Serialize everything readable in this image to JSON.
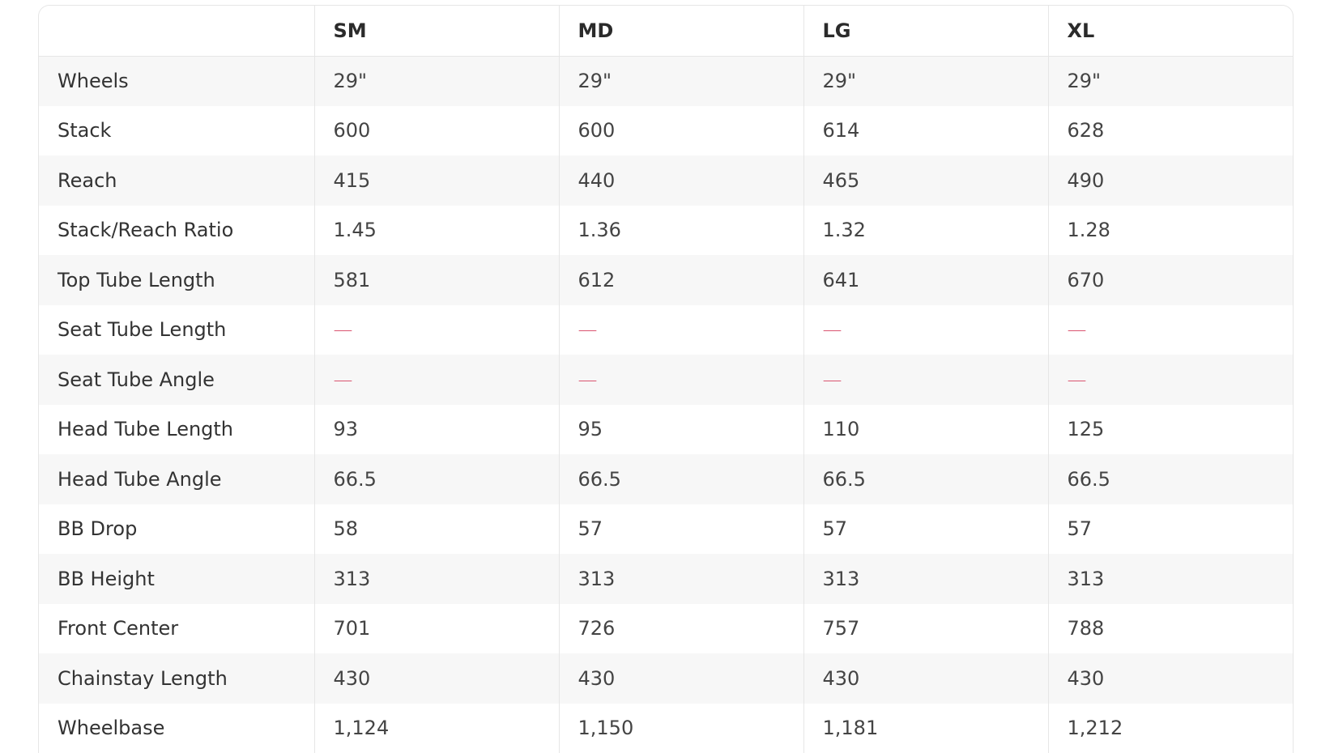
{
  "table": {
    "columns": [
      "SM",
      "MD",
      "LG",
      "XL"
    ],
    "rows": [
      {
        "label": "Wheels",
        "values": [
          "29\"",
          "29\"",
          "29\"",
          "29\""
        ]
      },
      {
        "label": "Stack",
        "values": [
          "600",
          "600",
          "614",
          "628"
        ]
      },
      {
        "label": "Reach",
        "values": [
          "415",
          "440",
          "465",
          "490"
        ]
      },
      {
        "label": "Stack/Reach Ratio",
        "values": [
          "1.45",
          "1.36",
          "1.32",
          "1.28"
        ]
      },
      {
        "label": "Top Tube Length",
        "values": [
          "581",
          "612",
          "641",
          "670"
        ]
      },
      {
        "label": "Seat Tube Length",
        "values": [
          "—",
          "—",
          "—",
          "—"
        ]
      },
      {
        "label": "Seat Tube Angle",
        "values": [
          "—",
          "—",
          "—",
          "—"
        ]
      },
      {
        "label": "Head Tube Length",
        "values": [
          "93",
          "95",
          "110",
          "125"
        ]
      },
      {
        "label": "Head Tube Angle",
        "values": [
          "66.5",
          "66.5",
          "66.5",
          "66.5"
        ]
      },
      {
        "label": "BB Drop",
        "values": [
          "58",
          "57",
          "57",
          "57"
        ]
      },
      {
        "label": "BB Height",
        "values": [
          "313",
          "313",
          "313",
          "313"
        ]
      },
      {
        "label": "Front Center",
        "values": [
          "701",
          "726",
          "757",
          "788"
        ]
      },
      {
        "label": "Chainstay Length",
        "values": [
          "430",
          "430",
          "430",
          "430"
        ]
      },
      {
        "label": "Wheelbase",
        "values": [
          "1,124",
          "1,150",
          "1,181",
          "1,212"
        ]
      }
    ]
  }
}
